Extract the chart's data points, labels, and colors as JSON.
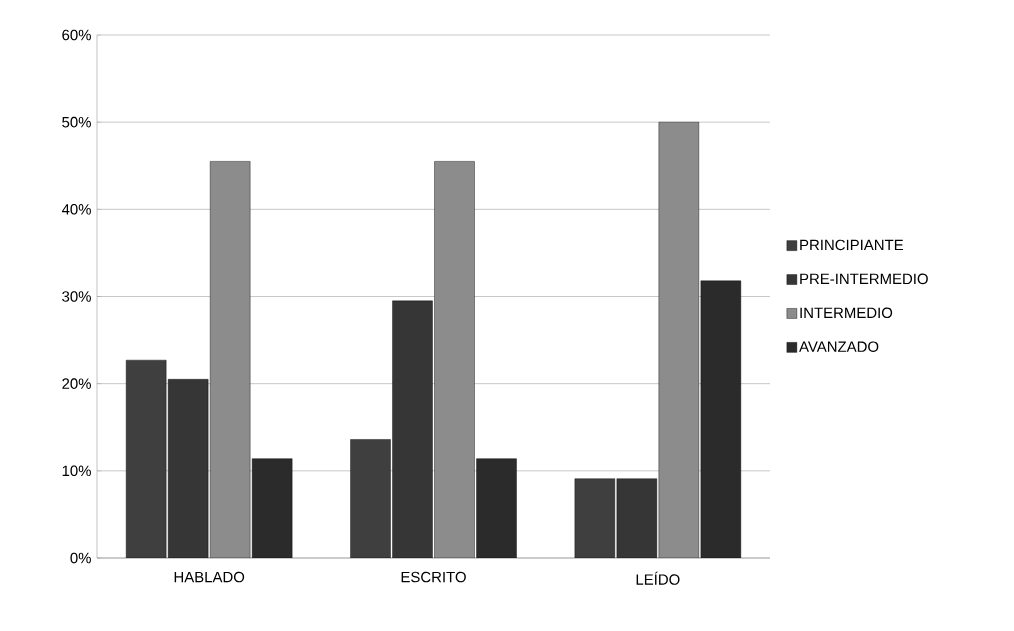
{
  "chart_data": {
    "type": "bar",
    "categories": [
      "HABLADO",
      "ESCRITO",
      "LEÍDO"
    ],
    "series": [
      {
        "name": "PRINCIPIANTE",
        "color": "#3f3f3f",
        "values": [
          22.7,
          13.6,
          9.1
        ]
      },
      {
        "name": "PRE-INTERMEDIO",
        "color": "#363636",
        "values": [
          20.5,
          29.5,
          9.1
        ]
      },
      {
        "name": "INTERMEDIO",
        "color": "#8c8c8c",
        "values": [
          45.5,
          45.5,
          50
        ]
      },
      {
        "name": "AVANZADO",
        "color": "#2b2b2b",
        "values": [
          11.4,
          11.4,
          31.8
        ]
      }
    ],
    "ylim": [
      0,
      60
    ],
    "yticks": [
      {
        "value": 0,
        "label": "0%"
      },
      {
        "value": 10,
        "label": "10%"
      },
      {
        "value": 20,
        "label": "20%"
      },
      {
        "value": 30,
        "label": "30%"
      },
      {
        "value": 40,
        "label": "40%"
      },
      {
        "value": 50,
        "label": "50%"
      },
      {
        "value": 60,
        "label": "60%"
      }
    ],
    "grid": "y",
    "legend": "right"
  }
}
